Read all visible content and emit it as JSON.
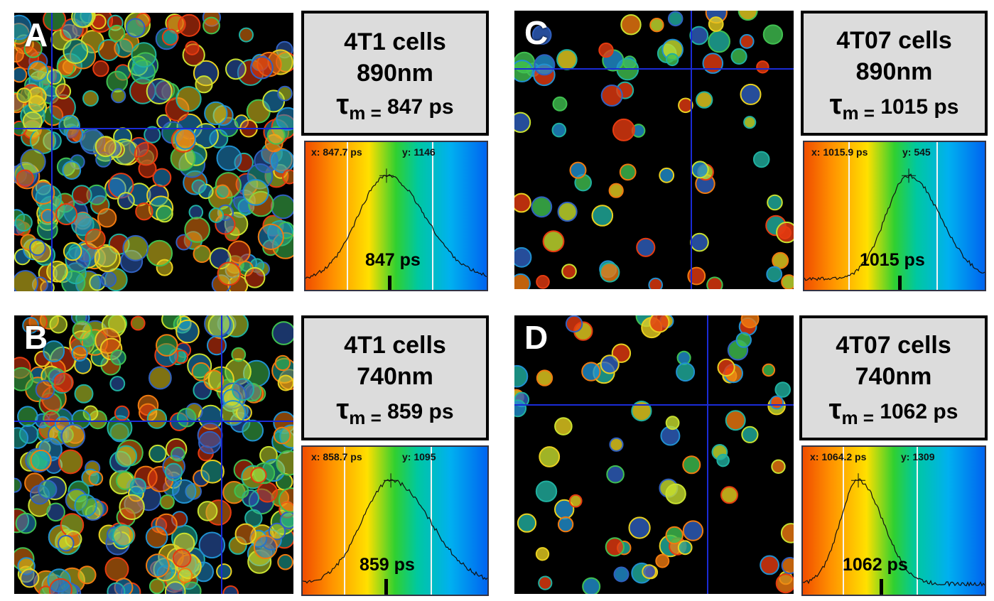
{
  "panels": [
    {
      "label": "A",
      "cell_line": "4T1 cells",
      "wavelength": "890nm",
      "tau_symbol": "τ",
      "tau_sub": "m =",
      "tau_value": "847 ps",
      "cursor_x": "x: 847.7  ps",
      "cursor_y": "y: 1146",
      "peak_label": "847 ps",
      "density": "dense"
    },
    {
      "label": "B",
      "cell_line": "4T1 cells",
      "wavelength": "740nm",
      "tau_symbol": "τ",
      "tau_sub": "m =",
      "tau_value": "859 ps",
      "cursor_x": "x: 858.7  ps",
      "cursor_y": "y: 1095",
      "peak_label": "859 ps",
      "density": "dense"
    },
    {
      "label": "C",
      "cell_line": "4T07 cells",
      "wavelength": "890nm",
      "tau_symbol": "τ",
      "tau_sub": "m =",
      "tau_value": "1015 ps",
      "cursor_x": "x: 1015.9  ps",
      "cursor_y": "y: 545",
      "peak_label": "1015 ps",
      "density": "sparse"
    },
    {
      "label": "D",
      "cell_line": "4T07 cells",
      "wavelength": "740nm",
      "tau_symbol": "τ",
      "tau_sub": "m =",
      "tau_value": "1062 ps",
      "cursor_x": "x: 1064.2  ps",
      "cursor_y": "y: 1309",
      "peak_label": "1062 ps",
      "density": "sparse"
    }
  ],
  "colors": {
    "crosshair": "#1a2bd6",
    "box_fill": "#dcdcdc",
    "gradient": [
      "#f04d00",
      "#ff9000",
      "#ffe000",
      "#30d030",
      "#00c8a0",
      "#00b0f0",
      "#0064f0"
    ]
  }
}
